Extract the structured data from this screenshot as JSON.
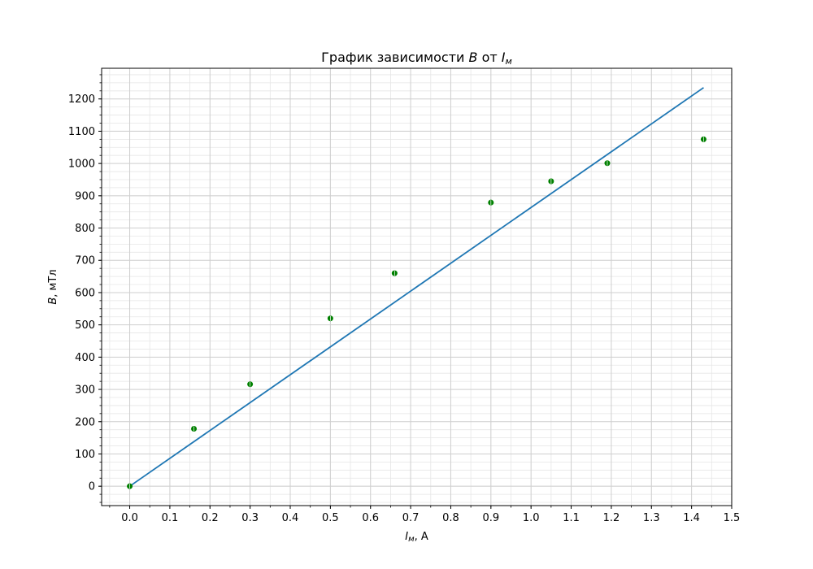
{
  "chart_data": {
    "type": "scatter",
    "title": "График зависимости B от Iм",
    "title_parts": {
      "prefix": "График зависимости ",
      "var": "B",
      "middle": " от ",
      "sub_var": "I",
      "sub": "м"
    },
    "xlabel": "Iм, А",
    "xlabel_parts": {
      "var": "I",
      "sub": "м",
      "unit": ", А"
    },
    "ylabel": "B, мТл",
    "ylabel_parts": {
      "var": "B",
      "unit": ", мТл"
    },
    "xlim": [
      -0.07,
      1.5
    ],
    "ylim": [
      -60,
      1295
    ],
    "x_ticks": [
      0.0,
      0.1,
      0.2,
      0.3,
      0.4,
      0.5,
      0.6,
      0.7,
      0.8,
      0.9,
      1.0,
      1.1,
      1.2,
      1.3,
      1.4,
      1.5
    ],
    "x_tick_labels": [
      "0.0",
      "0.1",
      "0.2",
      "0.3",
      "0.4",
      "0.5",
      "0.6",
      "0.7",
      "0.8",
      "0.9",
      "1.0",
      "1.1",
      "1.2",
      "1.3",
      "1.4",
      "1.5"
    ],
    "y_ticks": [
      0,
      100,
      200,
      300,
      400,
      500,
      600,
      700,
      800,
      900,
      1000,
      1100,
      1200
    ],
    "y_tick_labels": [
      "0",
      "100",
      "200",
      "300",
      "400",
      "500",
      "600",
      "700",
      "800",
      "900",
      "1000",
      "1100",
      "1200"
    ],
    "grid": true,
    "minor_grid": true,
    "series": [
      {
        "kind": "scatter",
        "color": "#008000",
        "points": [
          {
            "x": 0.0,
            "y": 0
          },
          {
            "x": 0.16,
            "y": 178
          },
          {
            "x": 0.3,
            "y": 316
          },
          {
            "x": 0.5,
            "y": 520
          },
          {
            "x": 0.66,
            "y": 660
          },
          {
            "x": 0.9,
            "y": 879
          },
          {
            "x": 1.05,
            "y": 945
          },
          {
            "x": 1.19,
            "y": 1001
          },
          {
            "x": 1.43,
            "y": 1075
          }
        ]
      },
      {
        "kind": "line",
        "color": "#1f77b4",
        "points": [
          {
            "x": 0.0,
            "y": 0
          },
          {
            "x": 1.43,
            "y": 1235
          }
        ]
      }
    ]
  }
}
